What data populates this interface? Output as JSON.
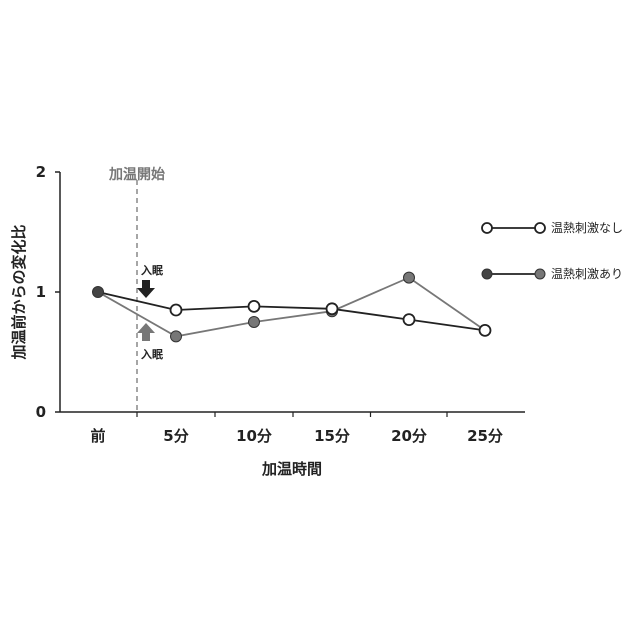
{
  "chart_data": {
    "type": "line",
    "categories": [
      "前",
      "5分",
      "10分",
      "15分",
      "20分",
      "25分"
    ],
    "xlabel": "加温時間",
    "ylabel": "加温前からの変化比",
    "ylim": [
      0,
      2
    ],
    "yticks": [
      "0",
      "1",
      "2"
    ],
    "grid": false,
    "legend_position": "right",
    "series": [
      {
        "name": "温熱刺激なし",
        "values": [
          1.0,
          0.85,
          0.88,
          0.86,
          0.77,
          0.68
        ],
        "color": "#222222",
        "marker": "open-circle"
      },
      {
        "name": "温熱刺激あり",
        "values": [
          1.0,
          0.63,
          0.75,
          0.84,
          1.12,
          0.68
        ],
        "color": "#777777",
        "marker": "filled-circle"
      }
    ],
    "annotations": {
      "start_label": "加温開始",
      "sleep_onset_label": "入眠"
    },
    "colors": {
      "axis": "#222222",
      "marker_fill_dark": "#444444",
      "marker_fill_gray": "#777777",
      "arrow_dark": "#222222",
      "arrow_gray": "#777777",
      "dashed_line": "#888888"
    }
  }
}
